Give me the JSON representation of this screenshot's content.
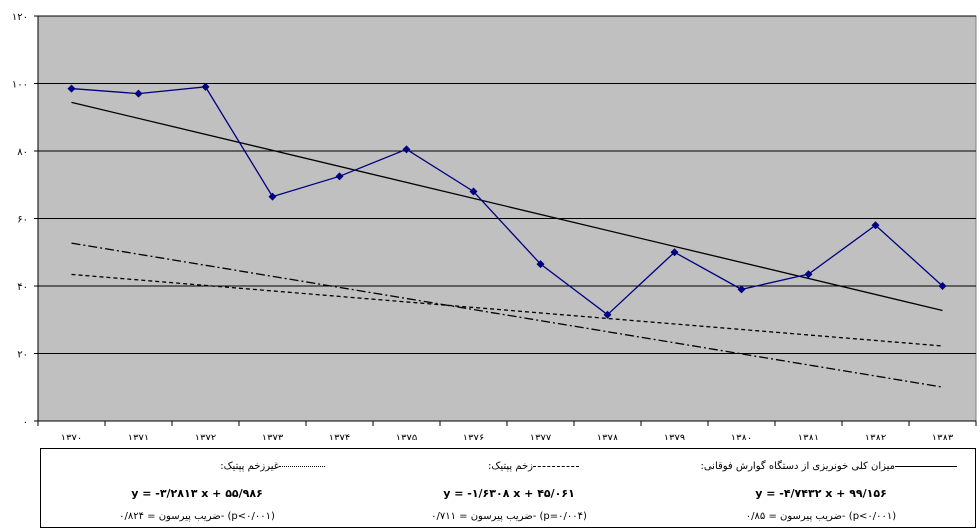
{
  "chart_data": {
    "type": "line",
    "x": [
      "۱۳۷۰",
      "۱۳۷۱",
      "۱۳۷۲",
      "۱۳۷۳",
      "۱۳۷۴",
      "۱۳۷۵",
      "۱۳۷۶",
      "۱۳۷۷",
      "۱۳۷۸",
      "۱۳۷۹",
      "۱۳۸۰",
      "۱۳۸۱",
      "۱۳۸۲",
      "۱۳۸۳"
    ],
    "ylim": [
      0,
      120
    ],
    "yticks": [
      "۰",
      "۲۰",
      "۴۰",
      "۶۰",
      "۸۰",
      "۱۰۰",
      "۱۲۰"
    ],
    "grid": true,
    "plot_background": "#c0c0c0",
    "series": [
      {
        "name": "میزان کلی خونریزی از دستگاه گوارش فوقانی:",
        "color": "#000080",
        "marker": "diamond",
        "values": [
          98.5,
          97,
          99,
          66.5,
          72.5,
          80.5,
          68,
          46.5,
          31.5,
          50,
          39,
          43.5,
          58,
          40
        ]
      }
    ],
    "trendlines": [
      {
        "key": "total",
        "color": "#000000",
        "dash": "solid",
        "slope": -4.7432,
        "intercept": 99.156
      },
      {
        "key": "peptic",
        "color": "#000000",
        "dash": "dashed",
        "slope": -1.6308,
        "intercept": 45.061
      },
      {
        "key": "nonpeptic",
        "color": "#000000",
        "dash": "dashdot",
        "slope": -3.2813,
        "intercept": 55.986
      }
    ]
  },
  "legend": {
    "total": {
      "title": "میزان کلی خونریزی از دستگاه گوارش فوقانی:",
      "equation": "y = -۴/۷۴۳۲ x + ۹۹/۱۵۶",
      "pearson": "ضریب پیرسون = ۰/۸۵- (p<۰/۰۰۱)"
    },
    "peptic": {
      "title": "زخم پپتیک:",
      "equation": "y = -۱/۶۳۰۸ x + ۴۵/۰۶۱",
      "pearson": "ضریب پیرسون = ۰/۷۱۱- (p=۰/۰۰۴)"
    },
    "nonpeptic": {
      "title": "غیرزخم پپتیک:",
      "equation": "y = -۳/۲۸۱۳ x + ۵۵/۹۸۶",
      "pearson": "ضریب پیرسون = ۰/۸۲۴- (p<۰/۰۰۱)"
    }
  }
}
